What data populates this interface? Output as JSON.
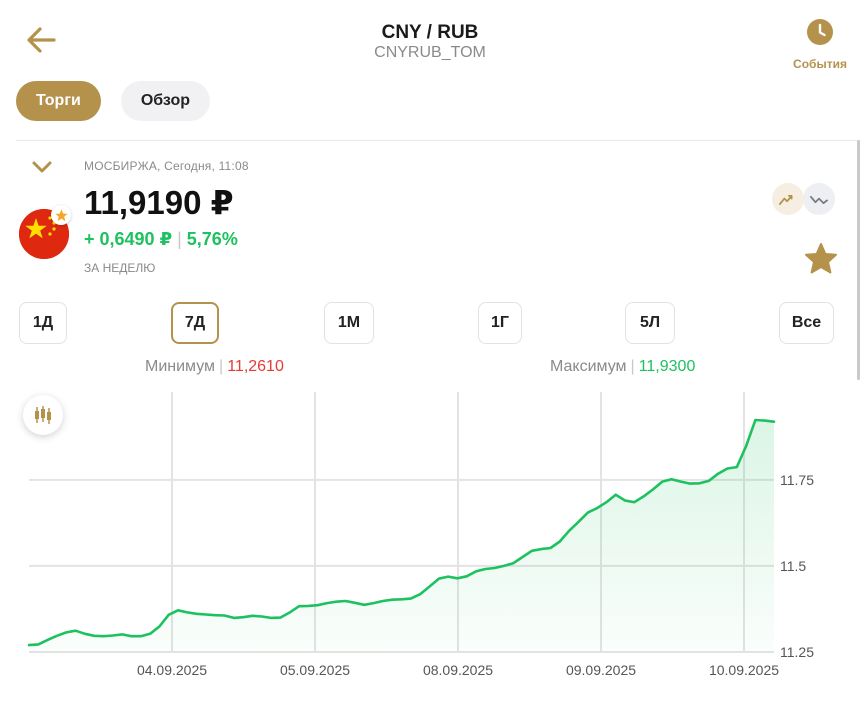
{
  "header": {
    "title": "CNY / RUB",
    "subtitle": "CNYRUB_TOM",
    "events_label": "События"
  },
  "tabs": [
    {
      "label": "Торги",
      "active": true
    },
    {
      "label": "Обзор",
      "active": false
    }
  ],
  "quote": {
    "exchange_line": "МОСБИРЖА, Сегодня, 11:08",
    "price": "11,9190 ₽",
    "change_abs": "+ 0,6490 ₽",
    "change_sep": "|",
    "change_pct": "5,76%",
    "period_label": "ЗА НЕДЕЛЮ"
  },
  "ranges": [
    {
      "label": "1Д",
      "active": false
    },
    {
      "label": "7Д",
      "active": true
    },
    {
      "label": "1М",
      "active": false
    },
    {
      "label": "1Г",
      "active": false
    },
    {
      "label": "5Л",
      "active": false
    },
    {
      "label": "Все",
      "active": false
    }
  ],
  "stats": {
    "min_label": "Минимум",
    "min_value": "11,2610",
    "max_label": "Максимум",
    "max_value": "11,9300",
    "sep": "|"
  },
  "colors": {
    "accent": "#b5924c",
    "up": "#1ec15f",
    "down": "#e53935"
  },
  "icons": {
    "back": "arrow-left-icon",
    "events": "clock-icon",
    "collapse": "chevron-down-icon",
    "flag": "china-flag-icon",
    "badge": "star-badge-icon",
    "line_chart": "line-chart-icon",
    "candle_chart": "candlestick-icon",
    "favorite": "star-icon"
  },
  "chart_data": {
    "type": "area",
    "x_tick_labels": [
      "04.09.2025",
      "05.09.2025",
      "08.09.2025",
      "09.09.2025",
      "10.09.2025"
    ],
    "y_tick_labels": [
      "11.75",
      "11.5",
      "11.25"
    ],
    "y_ticks": [
      11.75,
      11.5,
      11.25
    ],
    "ylim": [
      11.25,
      11.95
    ],
    "grid": true,
    "series": [
      {
        "values": [
          11.27,
          11.272,
          11.285,
          11.297,
          11.307,
          11.312,
          11.303,
          11.297,
          11.296,
          11.298,
          11.301,
          11.296,
          11.296,
          11.303,
          11.324,
          11.358,
          11.371,
          11.365,
          11.361,
          11.359,
          11.357,
          11.356,
          11.349,
          11.351,
          11.355,
          11.353,
          11.349,
          11.35,
          11.365,
          11.383,
          11.384,
          11.386,
          11.392,
          11.396,
          11.398,
          11.393,
          11.387,
          11.392,
          11.398,
          11.402,
          11.403,
          11.405,
          11.418,
          11.44,
          11.463,
          11.469,
          11.464,
          11.47,
          11.484,
          11.491,
          11.494,
          11.5,
          11.508,
          11.526,
          11.544,
          11.549,
          11.552,
          11.571,
          11.602,
          11.628,
          11.655,
          11.668,
          11.685,
          11.707,
          11.69,
          11.685,
          11.702,
          11.722,
          11.745,
          11.752,
          11.745,
          11.739,
          11.74,
          11.747,
          11.768,
          11.783,
          11.787,
          11.848,
          11.924,
          11.922,
          11.919
        ]
      }
    ]
  }
}
